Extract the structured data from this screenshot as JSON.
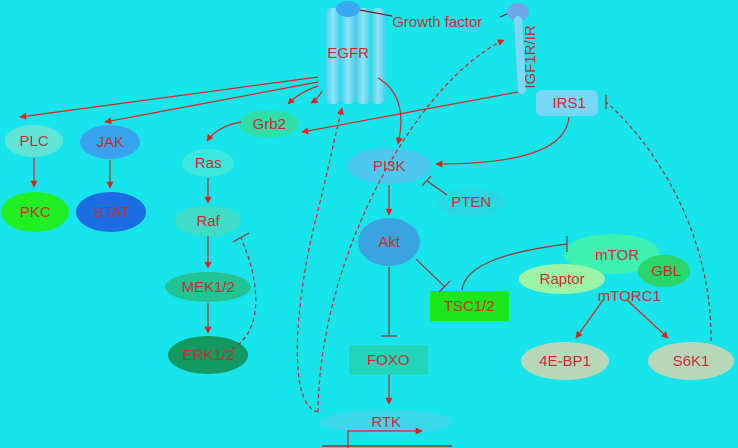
{
  "labels": {
    "growth_factor": "Growth factor",
    "egfr": "EGFR",
    "igf1r": "IGF1R/IR",
    "irs1": "IRS1",
    "plc": "PLC",
    "jak": "JAK",
    "grb2": "Grb2",
    "ras": "Ras",
    "raf": "Raf",
    "mek": "MEK1/2",
    "erk": "ERK1/2",
    "pkc": "PKC",
    "stat": "STAT",
    "pi3k": "PI3K",
    "pten": "PTEN",
    "akt": "Akt",
    "tsc": "TSC1/2",
    "mtor": "mTOR",
    "raptor": "Raptor",
    "gbl": "GBL",
    "mtorc1": "mTORC1",
    "foxo": "FOXO",
    "rtk": "RTK",
    "ebp1": "4E-BP1",
    "s6k1": "S6K1"
  },
  "colors": {
    "background": "#18e4ec",
    "arrow": "#e0201c",
    "inhibit": "#a03030",
    "text": "#d0262a"
  }
}
